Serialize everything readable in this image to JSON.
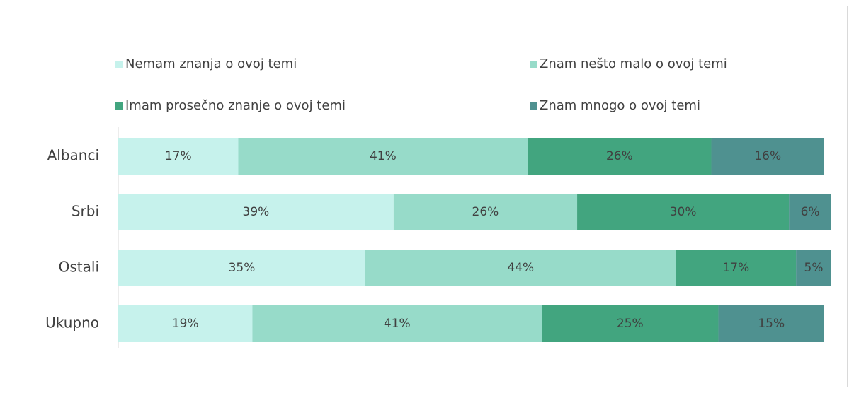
{
  "chart_data": {
    "type": "stacked_bar_horizontal",
    "categories": [
      "Albanci",
      "Srbi",
      "Ostali",
      "Ukupno"
    ],
    "series": [
      {
        "name": "Nemam znanja o ovoj temi",
        "color": "#c6f2ec",
        "values": [
          17,
          39,
          35,
          19
        ],
        "value_labels": [
          "17%",
          "39%",
          "35%",
          "19%"
        ]
      },
      {
        "name": "Znam nešto malo o ovoj temi",
        "color": "#97dbc9",
        "values": [
          41,
          26,
          44,
          41
        ],
        "value_labels": [
          "41%",
          "26%",
          "44%",
          "41%"
        ]
      },
      {
        "name": "Imam prosečno znanje o ovoj temi",
        "color": "#42a57f",
        "values": [
          26,
          30,
          17,
          25
        ],
        "value_labels": [
          "26%",
          "30%",
          "17%",
          "25%"
        ]
      },
      {
        "name": "Znam mnogo o ovoj temi",
        "color": "#4f9190",
        "values": [
          16,
          6,
          5,
          15
        ],
        "value_labels": [
          "16%",
          "6%",
          "5%",
          "15%"
        ]
      }
    ],
    "xlim": [
      0,
      100
    ],
    "legend": "top"
  }
}
